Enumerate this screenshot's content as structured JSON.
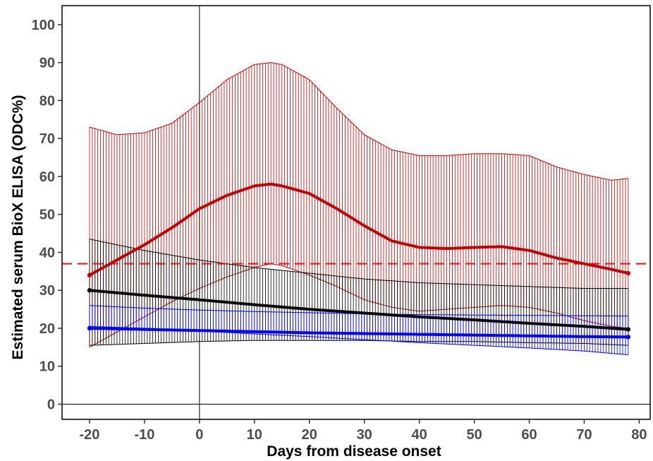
{
  "chart_data": {
    "type": "line",
    "title": "",
    "xlabel": "Days from disease onset",
    "ylabel": "Estimated serum BioX ELISA (ODC%)",
    "xlim": [
      -25,
      82
    ],
    "ylim": [
      -4,
      105
    ],
    "x_ticks": [
      -20,
      -10,
      0,
      10,
      20,
      30,
      40,
      50,
      60,
      70,
      80
    ],
    "y_ticks": [
      0,
      10,
      20,
      30,
      40,
      50,
      60,
      70,
      80,
      90,
      100
    ],
    "reference_lines": {
      "horizontal_zero": 0,
      "vertical_zero": 0
    },
    "threshold": {
      "value": 37,
      "style": "dashed",
      "color": "#e31a1c"
    },
    "grid": false,
    "legend": "none",
    "series": [
      {
        "color": "#c00000",
        "x": [
          -20,
          -15,
          -10,
          -5,
          0,
          5,
          10,
          13,
          15,
          20,
          25,
          30,
          35,
          40,
          45,
          50,
          55,
          60,
          65,
          70,
          75,
          78
        ],
        "y": [
          34,
          38,
          42,
          46.5,
          51.5,
          55,
          57.5,
          58,
          57.5,
          55.5,
          51.5,
          47,
          43,
          41.3,
          41,
          41.3,
          41.5,
          40.5,
          38.5,
          37,
          35.5,
          34.5
        ],
        "lower": [
          15,
          19,
          23,
          27,
          30.5,
          33.5,
          36,
          37,
          36.5,
          34,
          31,
          27.5,
          25.5,
          24.5,
          25,
          25.5,
          26,
          25.5,
          24,
          22,
          20.5,
          20
        ],
        "upper": [
          73,
          71,
          71.5,
          74,
          79.5,
          85.5,
          89.5,
          90,
          89.5,
          85.5,
          78,
          71,
          67,
          65.5,
          65.5,
          66,
          66,
          65.5,
          62.5,
          60.5,
          59,
          59.5
        ]
      },
      {
        "color": "#000000",
        "x": [
          -20,
          -10,
          0,
          10,
          20,
          30,
          40,
          50,
          60,
          70,
          78
        ],
        "y": [
          30,
          28.7,
          27.5,
          26.2,
          25,
          24,
          23,
          22.2,
          21.3,
          20.5,
          19.7
        ],
        "lower": [
          15.5,
          16,
          16.5,
          16.8,
          16.8,
          16.8,
          16.5,
          16.5,
          16.2,
          16,
          15.5
        ],
        "upper": [
          43.5,
          40.5,
          38,
          36,
          34.5,
          33,
          32,
          31.5,
          31,
          30.5,
          30.5
        ]
      },
      {
        "color": "#0000ff",
        "x": [
          -20,
          -10,
          0,
          10,
          20,
          30,
          40,
          50,
          60,
          70,
          78
        ],
        "y": [
          20,
          19.7,
          19.4,
          19.1,
          18.8,
          18.6,
          18.4,
          18.2,
          18,
          17.8,
          17.7
        ],
        "lower": [
          20.5,
          20,
          19.3,
          18.5,
          17.8,
          17,
          16.2,
          15.5,
          14.8,
          14,
          13
        ],
        "upper": [
          26,
          25.3,
          24.8,
          24.4,
          24.1,
          23.8,
          23.6,
          23.5,
          23.4,
          23.3,
          23.2
        ]
      }
    ]
  }
}
